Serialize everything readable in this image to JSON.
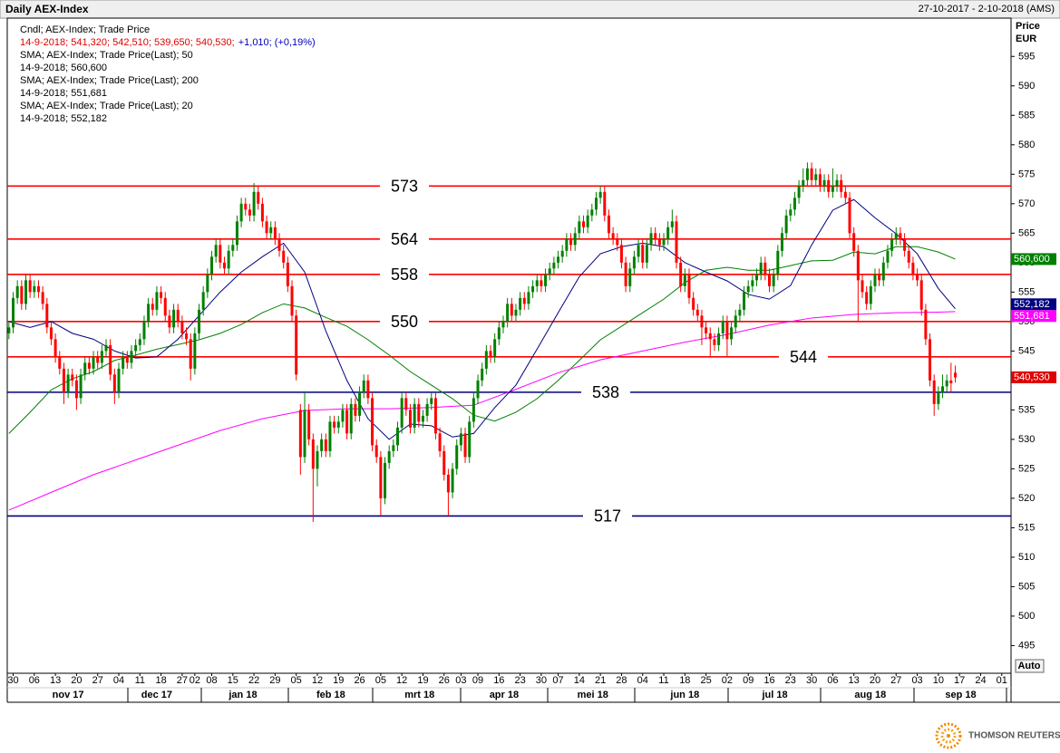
{
  "chart_data": {
    "type": "candlestick",
    "title": "Daily AEX-Index",
    "date_range": "27-10-2017 - 2-10-2018 (AMS)",
    "y_label": "Price",
    "y_unit": "EUR",
    "auto_button": "Auto",
    "brand": "THOMSON REUTERS",
    "ylim": [
      490.3,
      601.5
    ],
    "yticks": [
      495,
      500,
      505,
      510,
      515,
      520,
      525,
      530,
      535,
      540,
      545,
      550,
      555,
      560,
      565,
      570,
      575,
      580,
      585,
      590,
      595
    ],
    "xlim": [
      -0.4,
      237.2
    ],
    "xticks": [
      {
        "value": 1,
        "label": "30"
      },
      {
        "value": 6,
        "label": "06"
      },
      {
        "value": 11,
        "label": "13"
      },
      {
        "value": 16,
        "label": "20"
      },
      {
        "value": 21,
        "label": "27"
      },
      {
        "value": 26,
        "label": "04"
      },
      {
        "value": 31,
        "label": "11"
      },
      {
        "value": 36,
        "label": "18"
      },
      {
        "value": 41,
        "label": "27"
      },
      {
        "value": 44,
        "label": "02"
      },
      {
        "value": 48,
        "label": "08"
      },
      {
        "value": 53,
        "label": "15"
      },
      {
        "value": 58,
        "label": "22"
      },
      {
        "value": 63,
        "label": "29"
      },
      {
        "value": 68,
        "label": "05"
      },
      {
        "value": 73,
        "label": "12"
      },
      {
        "value": 78,
        "label": "19"
      },
      {
        "value": 83,
        "label": "26"
      },
      {
        "value": 88,
        "label": "05"
      },
      {
        "value": 93,
        "label": "12"
      },
      {
        "value": 98,
        "label": "19"
      },
      {
        "value": 103,
        "label": "26"
      },
      {
        "value": 107,
        "label": "03"
      },
      {
        "value": 111,
        "label": "09"
      },
      {
        "value": 116,
        "label": "16"
      },
      {
        "value": 121,
        "label": "23"
      },
      {
        "value": 126,
        "label": "30"
      },
      {
        "value": 130,
        "label": "07"
      },
      {
        "value": 135,
        "label": "14"
      },
      {
        "value": 140,
        "label": "21"
      },
      {
        "value": 145,
        "label": "28"
      },
      {
        "value": 150,
        "label": "04"
      },
      {
        "value": 155,
        "label": "11"
      },
      {
        "value": 160,
        "label": "18"
      },
      {
        "value": 165,
        "label": "25"
      },
      {
        "value": 170,
        "label": "02"
      },
      {
        "value": 175,
        "label": "09"
      },
      {
        "value": 180,
        "label": "16"
      },
      {
        "value": 185,
        "label": "23"
      },
      {
        "value": 190,
        "label": "30"
      },
      {
        "value": 195,
        "label": "06"
      },
      {
        "value": 200,
        "label": "13"
      },
      {
        "value": 205,
        "label": "20"
      },
      {
        "value": 210,
        "label": "27"
      },
      {
        "value": 215,
        "label": "03"
      },
      {
        "value": 220,
        "label": "10"
      },
      {
        "value": 225,
        "label": "17"
      },
      {
        "value": 230,
        "label": "24"
      },
      {
        "value": 235,
        "label": "01"
      }
    ],
    "months": [
      {
        "value": 14,
        "label": "nov 17"
      },
      {
        "value": 35,
        "label": "dec 17"
      },
      {
        "value": 55.4,
        "label": "jan 18"
      },
      {
        "value": 76.2,
        "label": "feb 18"
      },
      {
        "value": 97.2,
        "label": "mrt 18"
      },
      {
        "value": 117.2,
        "label": "apr 18"
      },
      {
        "value": 138.2,
        "label": "mei 18"
      },
      {
        "value": 160,
        "label": "jun 18"
      },
      {
        "value": 181.3,
        "label": "jul 18"
      },
      {
        "value": 203.9,
        "label": "aug 18"
      },
      {
        "value": 225.3,
        "label": "sep 18"
      }
    ],
    "up_color": "#008000",
    "down_color": "#ff0000",
    "candle_legend": {
      "name": "Cndl; AEX-Index; Trade Price",
      "info": "14-9-2018; 541,320; 542,510; 539,650; 540,530;",
      "change": "+1,010; (+0,19%)",
      "color": "#e00000",
      "change_color": "#0000c0",
      "last_label": "540,530"
    },
    "open": [
      548,
      549,
      554,
      556,
      553,
      557,
      555,
      556,
      555,
      553,
      549,
      547,
      544,
      542,
      538,
      541,
      540,
      537,
      541,
      543,
      542,
      544,
      543,
      545,
      546,
      541,
      538,
      542,
      544,
      543,
      545,
      546,
      547,
      550,
      553,
      552,
      555,
      554,
      551,
      549,
      552,
      550,
      548,
      547,
      542,
      548,
      552,
      555,
      558,
      561,
      563,
      560,
      559,
      562,
      563,
      567,
      570,
      569,
      568,
      572,
      570,
      567,
      565,
      566,
      564,
      562,
      560,
      556,
      551,
      535,
      527,
      535,
      530,
      525,
      528,
      530,
      528,
      533,
      532,
      533,
      535,
      531,
      536,
      534,
      538,
      540,
      537,
      529,
      527,
      520,
      526,
      528,
      529,
      532,
      537,
      535,
      532,
      536,
      533,
      534,
      536,
      537,
      531,
      528,
      524,
      521,
      525,
      529,
      531,
      527,
      533,
      537,
      540,
      542,
      545,
      544,
      547,
      549,
      550,
      553,
      551,
      552,
      554,
      553,
      555,
      556,
      557,
      556,
      558,
      559,
      560,
      561,
      562,
      564,
      563,
      565,
      567,
      566,
      568,
      569,
      571,
      572,
      568,
      565,
      564,
      563,
      560,
      556,
      559,
      561,
      563,
      560,
      563,
      565,
      564,
      563,
      564,
      566,
      567,
      560,
      556,
      558,
      554,
      552,
      551,
      549,
      548,
      547,
      546,
      548,
      550,
      547,
      549,
      551,
      552,
      555,
      556,
      557,
      558,
      560,
      558,
      556,
      558,
      562,
      565,
      568,
      569,
      571,
      573,
      574,
      576,
      574,
      575,
      573,
      574,
      572,
      573,
      574,
      572,
      571,
      565,
      562,
      557,
      555,
      553,
      556,
      558,
      557,
      560,
      562,
      564,
      565,
      564,
      562,
      560,
      558,
      557,
      552,
      547,
      540,
      536,
      538,
      539,
      540,
      541.32
    ],
    "high": [
      550,
      555,
      557,
      557,
      558,
      558,
      557,
      557,
      556,
      554,
      550,
      548,
      545,
      543,
      542,
      542,
      541,
      542,
      544,
      544,
      545,
      545,
      546,
      547,
      547,
      542,
      543,
      545,
      545,
      546,
      547,
      548,
      551,
      554,
      554,
      556,
      556,
      555,
      552,
      553,
      553,
      551,
      549,
      548,
      549,
      553,
      556,
      559,
      562,
      564,
      564,
      561,
      563,
      564,
      568,
      571,
      571,
      570,
      573.5,
      573,
      571,
      568,
      567,
      567,
      565,
      563,
      561,
      557,
      552,
      536,
      538,
      536,
      531,
      529,
      531,
      531,
      534,
      534,
      534,
      536,
      536,
      537,
      537,
      539,
      541,
      541,
      538,
      530,
      528,
      527,
      529,
      530,
      533,
      538,
      538,
      536,
      537,
      537,
      535,
      537,
      538,
      538,
      532,
      529,
      525,
      526,
      530,
      532,
      532,
      534,
      538,
      541,
      543,
      546,
      546,
      548,
      550,
      551,
      554,
      554,
      553,
      555,
      555,
      556,
      557,
      558,
      558,
      559,
      560,
      561,
      562,
      563,
      565,
      565,
      566,
      568,
      568,
      569,
      570,
      572,
      573,
      573,
      569,
      566,
      565,
      564,
      561,
      560,
      562,
      564,
      564,
      564,
      566,
      566,
      565,
      565,
      567,
      569,
      568,
      561,
      559,
      559,
      555,
      553,
      552,
      550,
      549,
      548,
      549,
      551,
      551,
      550,
      552,
      553,
      556,
      557,
      558,
      559,
      561,
      561,
      559,
      559,
      563,
      566,
      569,
      570,
      572,
      574,
      576,
      577,
      577,
      576,
      576,
      575,
      575,
      576,
      575,
      575,
      573,
      572,
      566,
      563,
      558,
      556,
      557,
      559,
      559,
      561,
      563,
      565,
      566,
      566,
      565,
      563,
      561,
      559,
      558,
      553,
      548,
      541,
      539,
      541,
      541,
      543,
      542.51
    ],
    "low": [
      547,
      548,
      553,
      552,
      552,
      554,
      554,
      554,
      552,
      548,
      546,
      543,
      541,
      536,
      537,
      539,
      535,
      536,
      540,
      541,
      541,
      542,
      542,
      544,
      540,
      536,
      537,
      541,
      542,
      542,
      544,
      545,
      546,
      549,
      551,
      551,
      553,
      550,
      548,
      548,
      549,
      547,
      546,
      540,
      541,
      547,
      551,
      554,
      557,
      560,
      559,
      558,
      558,
      561,
      562,
      566,
      568,
      567,
      567,
      569,
      566,
      564,
      564,
      563,
      561,
      559,
      555,
      550,
      540,
      524,
      526,
      529,
      516,
      522,
      527,
      527,
      527,
      531,
      531,
      532,
      530,
      530,
      533,
      533,
      537,
      536,
      528,
      526,
      517,
      519,
      525,
      527,
      528,
      531,
      534,
      531,
      531,
      532,
      532,
      533,
      535,
      530,
      527,
      523,
      517,
      520,
      524,
      528,
      526,
      526,
      532,
      536,
      539,
      541,
      543,
      543,
      546,
      548,
      549,
      550,
      550,
      551,
      552,
      552,
      554,
      555,
      555,
      555,
      557,
      558,
      559,
      560,
      561,
      562,
      562,
      564,
      565,
      565,
      567,
      568,
      570,
      567,
      564,
      563,
      562,
      559,
      555,
      555,
      558,
      560,
      559,
      559,
      562,
      563,
      562,
      562,
      563,
      565,
      559,
      555,
      555,
      553,
      551,
      550,
      546,
      547,
      544,
      545,
      545,
      547,
      544,
      546,
      548,
      550,
      551,
      554,
      555,
      556,
      557,
      557,
      555,
      555,
      557,
      561,
      564,
      567,
      568,
      570,
      572,
      573,
      573,
      573,
      572,
      572,
      571,
      571,
      572,
      571,
      570,
      564,
      561,
      550,
      554,
      552,
      552,
      555,
      556,
      556,
      559,
      561,
      563,
      563,
      561,
      559,
      557,
      556,
      551,
      546,
      539,
      534,
      535,
      537,
      538,
      538,
      539.65
    ],
    "close": [
      549,
      554,
      556,
      553,
      557,
      555,
      556,
      555,
      553,
      549,
      547,
      544,
      542,
      538,
      541,
      540,
      537,
      541,
      543,
      542,
      544,
      543,
      545,
      546,
      541,
      538,
      542,
      544,
      543,
      545,
      546,
      547,
      550,
      553,
      552,
      555,
      554,
      551,
      549,
      552,
      550,
      548,
      547,
      542,
      548,
      552,
      555,
      558,
      561,
      563,
      560,
      559,
      562,
      563,
      567,
      570,
      569,
      568,
      572,
      570,
      567,
      565,
      566,
      564,
      562,
      560,
      556,
      551,
      541,
      527,
      535,
      530,
      525,
      528,
      530,
      528,
      533,
      532,
      533,
      535,
      531,
      536,
      534,
      538,
      540,
      537,
      529,
      527,
      520,
      526,
      528,
      529,
      532,
      537,
      535,
      532,
      536,
      533,
      534,
      536,
      537,
      531,
      528,
      524,
      521,
      525,
      529,
      531,
      527,
      533,
      537,
      540,
      542,
      545,
      544,
      547,
      549,
      550,
      553,
      551,
      552,
      554,
      553,
      555,
      556,
      557,
      556,
      558,
      559,
      560,
      561,
      562,
      564,
      563,
      565,
      567,
      566,
      568,
      569,
      571,
      572,
      568,
      565,
      564,
      563,
      560,
      556,
      559,
      561,
      563,
      560,
      563,
      565,
      564,
      563,
      564,
      566,
      567,
      560,
      556,
      558,
      554,
      552,
      551,
      549,
      548,
      547,
      546,
      548,
      550,
      547,
      549,
      551,
      552,
      555,
      556,
      557,
      558,
      560,
      558,
      556,
      558,
      562,
      565,
      568,
      569,
      571,
      573,
      574,
      576,
      574,
      575,
      573,
      574,
      572,
      573,
      574,
      572,
      571,
      565,
      562,
      557,
      555,
      553,
      556,
      558,
      557,
      560,
      562,
      564,
      565,
      564,
      562,
      560,
      558,
      557,
      552,
      547,
      540,
      536,
      538,
      539,
      540,
      539.52,
      540.53
    ],
    "series": [
      {
        "name": "SMA; AEX-Index; Trade Price(Last);  50",
        "last_text": "14-9-2018; 560,600",
        "last_label": "560,600",
        "color": "#008000",
        "x": [
          0,
          5,
          10,
          15,
          20,
          25,
          30,
          35,
          40,
          45,
          50,
          55,
          60,
          65,
          70,
          75,
          80,
          85,
          90,
          95,
          100,
          105,
          110,
          115,
          120,
          125,
          130,
          135,
          140,
          145,
          150,
          155,
          160,
          165,
          170,
          175,
          180,
          185,
          190,
          195,
          200,
          205,
          210,
          215,
          220,
          224
        ],
        "values": [
          531,
          534.6,
          538.4,
          540.3,
          541.5,
          543.4,
          544.3,
          545.3,
          546.1,
          546.9,
          548,
          549.5,
          551.5,
          553,
          552.3,
          550.7,
          549.2,
          546.9,
          544.3,
          541.5,
          539.2,
          536.9,
          534.1,
          533.1,
          534.6,
          536.9,
          540,
          543.4,
          546.9,
          549.2,
          551.5,
          553.8,
          556.6,
          558.7,
          559.2,
          558.7,
          558.7,
          559.5,
          560.3,
          560.4,
          561.8,
          561.5,
          562.7,
          562.7,
          561.8,
          560.6
        ]
      },
      {
        "name": "SMA; AEX-Index; Trade Price(Last);  200",
        "last_text": "14-9-2018; 551,681",
        "last_label": "551,681",
        "color": "#ff00ff",
        "x": [
          0,
          10,
          20,
          30,
          40,
          50,
          60,
          70,
          80,
          90,
          100,
          110,
          120,
          130,
          140,
          150,
          160,
          170,
          180,
          190,
          200,
          210,
          220,
          224
        ],
        "values": [
          518,
          521,
          524,
          526.5,
          529,
          531.5,
          533.5,
          534.9,
          535.2,
          535.2,
          535.4,
          535.8,
          538.5,
          541.3,
          543.5,
          545,
          546.5,
          547.8,
          549.4,
          550.6,
          551.2,
          551.5,
          551.6,
          551.681
        ]
      },
      {
        "name": "SMA; AEX-Index; Trade Price(Last);  20",
        "last_text": "14-9-2018; 552,182",
        "last_label": "552,182",
        "color": "#000080",
        "x": [
          0,
          5,
          10,
          15,
          20,
          25,
          30,
          35,
          40,
          45,
          50,
          55,
          60,
          65,
          70,
          75,
          80,
          85,
          90,
          95,
          100,
          105,
          110,
          115,
          120,
          125,
          130,
          135,
          140,
          145,
          150,
          155,
          160,
          165,
          170,
          175,
          180,
          185,
          190,
          195,
          200,
          205,
          210,
          215,
          220,
          224
        ],
        "values": [
          550,
          549,
          550,
          548,
          547,
          545,
          543.8,
          544,
          547,
          551,
          555,
          558.4,
          561,
          563.3,
          558.4,
          548.4,
          540,
          533.5,
          530,
          532.6,
          532.3,
          530.4,
          531,
          535.4,
          539.2,
          545.3,
          551.5,
          557.6,
          561.5,
          562.7,
          563.3,
          562.7,
          560,
          558.4,
          556.9,
          554.6,
          553.8,
          556.1,
          563,
          568.9,
          570.7,
          567.6,
          564.9,
          561.5,
          555.6,
          552.182
        ]
      }
    ],
    "levels": [
      {
        "value": 573,
        "color": "#ff0000"
      },
      {
        "value": 564,
        "color": "#ff0000"
      },
      {
        "value": 558,
        "color": "#ff0000"
      },
      {
        "value": 550,
        "color": "#ff0000"
      },
      {
        "value": 544,
        "color": "#ff0000"
      },
      {
        "value": 538,
        "color": "#000080"
      },
      {
        "value": 517,
        "color": "#000080"
      }
    ]
  }
}
